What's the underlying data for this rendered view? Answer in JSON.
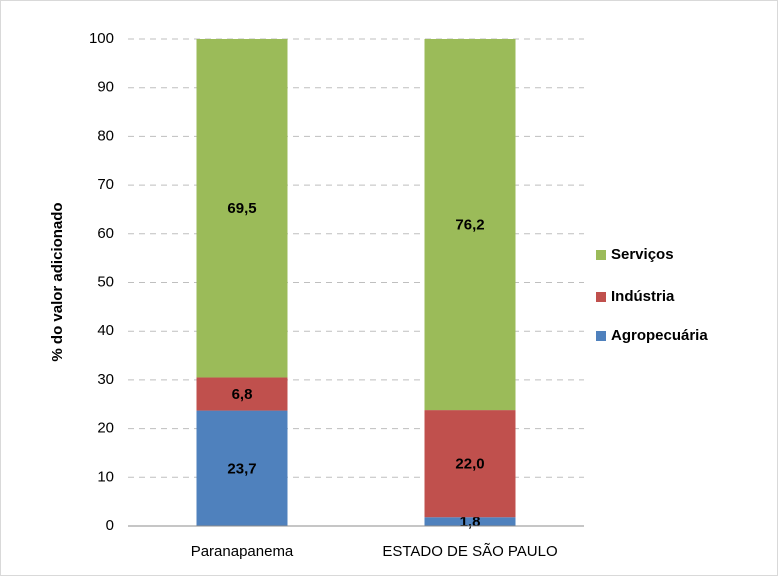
{
  "chart_data": {
    "type": "stacked_bar",
    "ylabel": "% do valor adicionado",
    "categories": [
      "Paranapanema",
      "ESTADO DE SÃO PAULO"
    ],
    "series": [
      {
        "name": "Agropecuária",
        "color": "#4f81bd",
        "values": [
          23.7,
          1.8
        ],
        "value_labels": [
          "23,7",
          "1,8"
        ]
      },
      {
        "name": "Indústria",
        "color": "#c0504d",
        "values": [
          6.8,
          22.0
        ],
        "value_labels": [
          "6,8",
          "22,0"
        ]
      },
      {
        "name": "Serviços",
        "color": "#9bbb59",
        "values": [
          69.5,
          76.2
        ],
        "value_labels": [
          "69,5",
          "76,2"
        ]
      }
    ],
    "ylim": [
      0,
      100
    ],
    "yticks": [
      0,
      10,
      20,
      30,
      40,
      50,
      60,
      70,
      80,
      90,
      100
    ],
    "grid": true,
    "legend": "right"
  }
}
